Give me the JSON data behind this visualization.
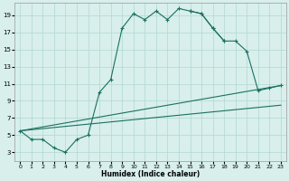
{
  "title": "",
  "xlabel": "Humidex (Indice chaleur)",
  "xlim": [
    -0.5,
    23.5
  ],
  "ylim": [
    2.0,
    20.5
  ],
  "yticks": [
    3,
    5,
    7,
    9,
    11,
    13,
    15,
    17,
    19
  ],
  "xticks": [
    0,
    1,
    2,
    3,
    4,
    5,
    6,
    7,
    8,
    9,
    10,
    11,
    12,
    13,
    14,
    15,
    16,
    17,
    18,
    19,
    20,
    21,
    22,
    23
  ],
  "bg_color": "#d8efec",
  "grid_color": "#b0d8d2",
  "line_color": "#1a7060",
  "line1_x": [
    0,
    1,
    2,
    3,
    4,
    5,
    6,
    7,
    8,
    9,
    10,
    11,
    12,
    13,
    14,
    15,
    16,
    17,
    18,
    19,
    20,
    21,
    22,
    23
  ],
  "line1_y": [
    5.5,
    4.5,
    4.5,
    3.5,
    3.0,
    4.5,
    5.0,
    10.0,
    11.5,
    17.5,
    19.2,
    18.5,
    19.5,
    18.5,
    19.8,
    19.5,
    19.2,
    17.5,
    16.0,
    null,
    null,
    null,
    null,
    null
  ],
  "line1b_x": [
    15,
    16,
    17,
    18,
    19,
    20,
    21,
    22,
    23
  ],
  "line1b_y": [
    19.5,
    19.2,
    17.5,
    16.0,
    16.0,
    14.8,
    10.2,
    10.5,
    10.8
  ],
  "line2_x": [
    0,
    23
  ],
  "line2_y": [
    5.5,
    10.8
  ],
  "line3_x": [
    0,
    23
  ],
  "line3_y": [
    5.5,
    8.5
  ]
}
